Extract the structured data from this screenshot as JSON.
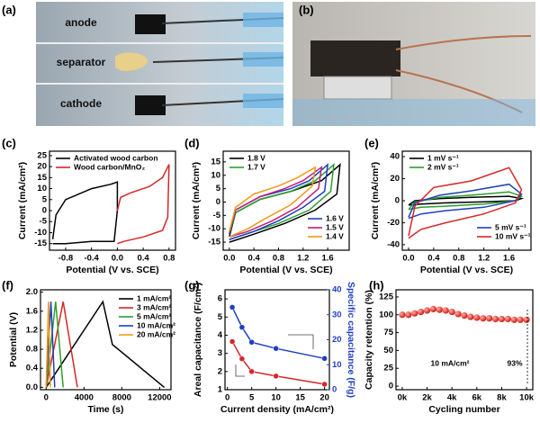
{
  "photos": {
    "a": {
      "label": "(a)",
      "texts": [
        "anode",
        "separator",
        "cathode"
      ]
    },
    "b": {
      "label": "(b)"
    }
  },
  "chart_data": [
    {
      "type": "line",
      "label": "(c)",
      "xlabel": "Potential (V vs. SCE)",
      "ylabel": "Current (mA/cm²)",
      "xlim": [
        -1.05,
        0.9
      ],
      "xticks": [
        -0.8,
        -0.4,
        {
          "value": 0,
          "label": "0.0"
        },
        0.4,
        0.8
      ],
      "ylim": [
        -18,
        27
      ],
      "yticks": [
        -15,
        -10,
        -5,
        0,
        5,
        10,
        15,
        20,
        25
      ],
      "legend": "upper left",
      "series": [
        {
          "name": "Activated wood carbon",
          "color": "#000000",
          "x": [
            -1.0,
            -0.95,
            -0.8,
            -0.4,
            -0.1,
            0,
            0,
            -0.05,
            -0.4,
            -0.8,
            -1.0
          ],
          "values": [
            -13,
            -2,
            5,
            10,
            12,
            13,
            0,
            -14,
            -14,
            -15,
            -15
          ]
        },
        {
          "name": "Wood carbon/MnO₂",
          "color": "#d62728",
          "x": [
            0,
            0.05,
            0.2,
            0.5,
            0.7,
            0.8,
            0.78,
            0.7,
            0.4,
            0.1,
            0
          ],
          "values": [
            0,
            6,
            8,
            11,
            15,
            21,
            -3,
            -9,
            -12,
            -14,
            -15
          ]
        }
      ]
    },
    {
      "type": "line",
      "label": "(d)",
      "xlabel": "Potential (V vs. SCE)",
      "ylabel": "Current (mA/cm²)",
      "xlim": [
        -0.1,
        1.95
      ],
      "xticks": [
        {
          "value": 0,
          "label": "0.0"
        },
        0.4,
        0.8,
        1.2,
        1.6
      ],
      "ylim": [
        -18,
        19
      ],
      "yticks": [
        -15,
        -10,
        -5,
        0,
        5,
        10,
        15
      ],
      "series": [
        {
          "name": "1.8 V",
          "color": "#000000",
          "x": [
            0,
            0.1,
            0.5,
            1.0,
            1.5,
            1.8,
            1.75,
            1.4,
            0.9,
            0.4,
            0
          ],
          "values": [
            -13,
            -4,
            1,
            4,
            8,
            14,
            3,
            -3,
            -8,
            -12,
            -15
          ]
        },
        {
          "name": "1.7 V",
          "color": "#2ca02c",
          "x": [
            0,
            0.1,
            0.5,
            1.0,
            1.4,
            1.7,
            1.65,
            1.3,
            0.8,
            0.4,
            0
          ],
          "values": [
            -12,
            -4,
            1,
            4,
            8,
            14,
            4,
            -3,
            -8,
            -11,
            -14
          ]
        },
        {
          "name": "1.6 V",
          "color": "#1f3fbf",
          "x": [
            0,
            0.1,
            0.5,
            1.0,
            1.3,
            1.6,
            1.55,
            1.2,
            0.8,
            0.4,
            0
          ],
          "values": [
            -12,
            -3,
            2,
            5,
            8,
            14,
            4,
            -2,
            -7,
            -11,
            -14
          ]
        },
        {
          "name": "1.5 V",
          "color": "#c0207a",
          "x": [
            0,
            0.1,
            0.5,
            0.9,
            1.2,
            1.5,
            1.45,
            1.1,
            0.7,
            0.3,
            0
          ],
          "values": [
            -11,
            -3,
            2,
            5,
            8,
            13,
            5,
            -2,
            -7,
            -11,
            -13
          ]
        },
        {
          "name": "1.4 V",
          "color": "#f09a1a",
          "x": [
            0,
            0.1,
            0.4,
            0.8,
            1.1,
            1.4,
            1.35,
            1.0,
            0.6,
            0.3,
            0
          ],
          "values": [
            -11,
            -2,
            3,
            6,
            9,
            13,
            6,
            -1,
            -6,
            -10,
            -13
          ]
        }
      ]
    },
    {
      "type": "line",
      "label": "(e)",
      "xlabel": "Potential (V vs. SCE)",
      "ylabel": "Current (mA/cm²)",
      "xlim": [
        -0.1,
        1.95
      ],
      "xticks": [
        {
          "value": 0,
          "label": "0.0"
        },
        0.4,
        0.8,
        1.2,
        1.6
      ],
      "ylim": [
        -45,
        45
      ],
      "yticks": [
        -40,
        -20,
        0,
        20,
        40
      ],
      "series": [
        {
          "name": "1 mV s⁻¹",
          "color": "#000000",
          "x": [
            0,
            0.1,
            0.5,
            1.0,
            1.6,
            1.8,
            1.7,
            1.2,
            0.6,
            0.2,
            0
          ],
          "values": [
            -4,
            0,
            2,
            3,
            4,
            2,
            0,
            -1,
            -2,
            -3,
            -4
          ]
        },
        {
          "name": "2 mV s⁻¹",
          "color": "#2ca02c",
          "x": [
            0,
            0.1,
            0.5,
            1.0,
            1.6,
            1.8,
            1.7,
            1.2,
            0.6,
            0.2,
            0
          ],
          "values": [
            -8,
            -1,
            3,
            5,
            8,
            4,
            0,
            -3,
            -5,
            -6,
            -8
          ]
        },
        {
          "name": "5 mV s⁻¹",
          "color": "#1f3fbf",
          "x": [
            0,
            0.1,
            0.5,
            1.0,
            1.6,
            1.8,
            1.7,
            1.2,
            0.6,
            0.2,
            0
          ],
          "values": [
            -15,
            -2,
            5,
            9,
            15,
            6,
            0,
            -6,
            -9,
            -12,
            -16
          ]
        },
        {
          "name": "10 mV s⁻¹",
          "color": "#d62728",
          "x": [
            0,
            0.1,
            0.4,
            1.0,
            1.6,
            1.8,
            1.7,
            1.2,
            0.6,
            0.2,
            0
          ],
          "values": [
            -32,
            -5,
            12,
            18,
            30,
            10,
            -2,
            -12,
            -20,
            -26,
            -34
          ]
        }
      ]
    },
    {
      "type": "line",
      "label": "(f)",
      "xlabel": "Time (s)",
      "ylabel": "Potential (V)",
      "xlim": [
        -600,
        13200
      ],
      "xticks": [
        0,
        4000,
        8000,
        12000
      ],
      "ylim": [
        -0.05,
        2.05
      ],
      "yticks": [
        {
          "value": 0,
          "label": "0.0"
        },
        0.4,
        0.8,
        1.2,
        1.6,
        {
          "value": 2,
          "label": "2.0"
        }
      ],
      "legend": "upper right",
      "series": [
        {
          "name": "1 mA/cm²",
          "color": "#000000",
          "x": [
            0,
            6000,
            7000,
            12500
          ],
          "values": [
            0,
            1.8,
            0.9,
            0
          ]
        },
        {
          "name": "3 mA/cm²",
          "color": "#d62728",
          "x": [
            0,
            1800,
            3300
          ],
          "values": [
            0,
            1.8,
            0
          ]
        },
        {
          "name": "5 mA/cm²",
          "color": "#2ca02c",
          "x": [
            0,
            1000,
            1800
          ],
          "values": [
            0,
            1.8,
            0
          ]
        },
        {
          "name": "10 mA/cm²",
          "color": "#1f3fbf",
          "x": [
            0,
            500,
            900
          ],
          "values": [
            0,
            1.8,
            0
          ]
        },
        {
          "name": "20 mA/cm²",
          "color": "#f09a1a",
          "x": [
            0,
            250,
            450
          ],
          "values": [
            0,
            1.8,
            0
          ]
        }
      ]
    },
    {
      "type": "line",
      "label": "(g)",
      "markers": true,
      "xlabel": "Current density (mA/cm²)",
      "ylabel": "Areal capacitance (F/cm²)",
      "y2label": "Specific capacitance (F/g)",
      "x": [
        1,
        3,
        5,
        10,
        20
      ],
      "xlim": [
        -0.5,
        21
      ],
      "xticks": [
        0,
        5,
        10,
        15,
        20
      ],
      "ylim": [
        1,
        6.5
      ],
      "yticks": [
        1,
        2,
        3,
        4,
        5,
        6
      ],
      "y2lim": [
        0,
        40
      ],
      "y2ticks": [
        0,
        10,
        20,
        30,
        40
      ],
      "series": [
        {
          "color": "#d62728",
          "values": [
            3.65,
            2.7,
            2.0,
            1.75,
            1.3
          ]
        },
        {
          "color": "#1f3fbf",
          "axis": "y2",
          "values": [
            33,
            25,
            19,
            16.5,
            12.5
          ]
        }
      ]
    },
    {
      "type": "scatter",
      "label": "(h)",
      "xlabel": "Cycling number",
      "ylabel": "Capacity retention (%)",
      "annotations": [
        "10 mA/cm²",
        "93%"
      ],
      "x": [
        0,
        500,
        1000,
        1500,
        2000,
        2500,
        3000,
        3500,
        4000,
        4500,
        5000,
        5500,
        6000,
        6500,
        7000,
        7500,
        8000,
        8500,
        9000,
        9500,
        10000
      ],
      "xlim": [
        -500,
        10500
      ],
      "xticks": [
        {
          "value": 0,
          "label": "0k"
        },
        {
          "value": 2000,
          "label": "2k"
        },
        {
          "value": 4000,
          "label": "4k"
        },
        {
          "value": 6000,
          "label": "6k"
        },
        {
          "value": 8000,
          "label": "8k"
        },
        {
          "value": 10000,
          "label": "10k"
        }
      ],
      "ylim": [
        -5,
        135
      ],
      "yticks": [
        0,
        25,
        50,
        75,
        100,
        125
      ],
      "series": [
        {
          "color": "#e8332a",
          "values": [
            100,
            100,
            102,
            104,
            106,
            108,
            107,
            106,
            104,
            101,
            99,
            97,
            96,
            95,
            95,
            94,
            94,
            94,
            93,
            93,
            93
          ]
        }
      ]
    }
  ]
}
